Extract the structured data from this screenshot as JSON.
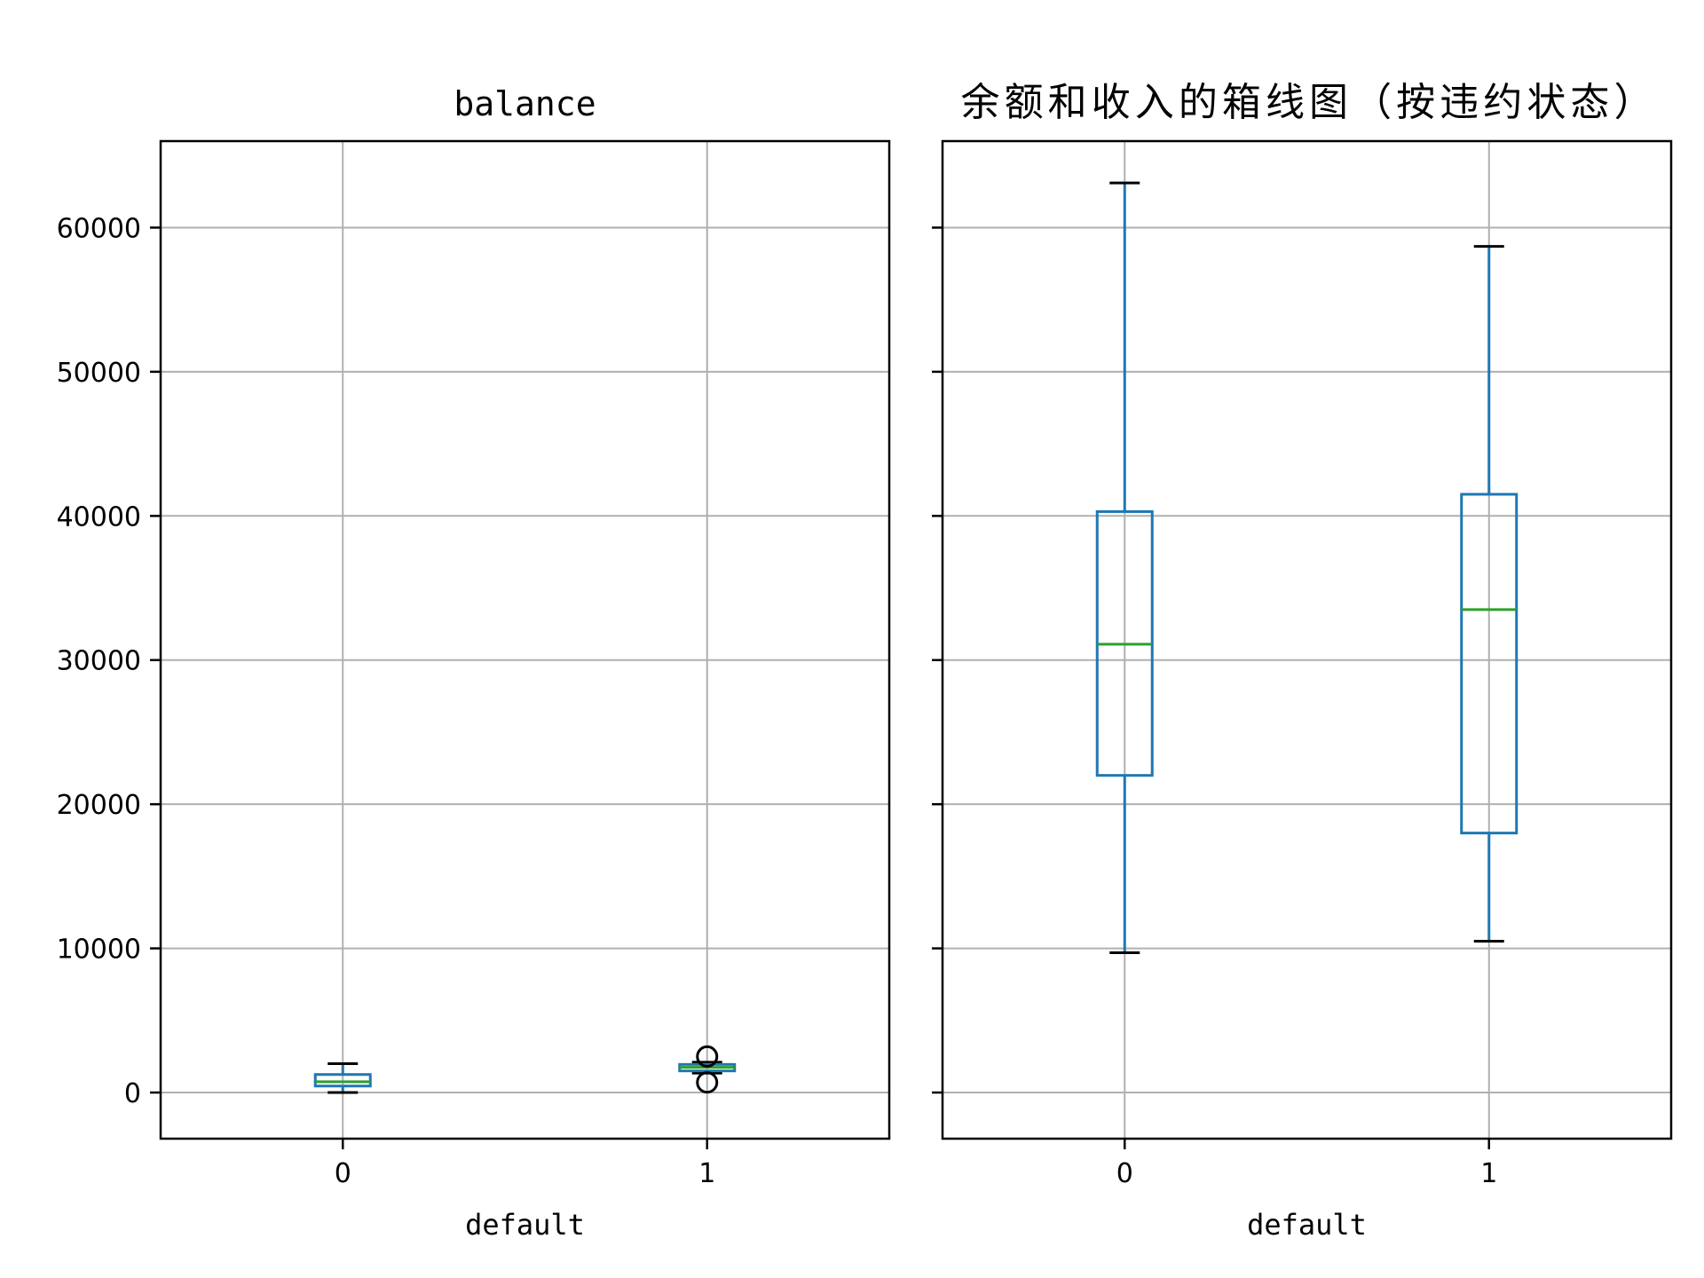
{
  "chart_data": [
    {
      "type": "box",
      "title": "balance",
      "xlabel": "default",
      "ylabel": "",
      "categories": [
        "0",
        "1"
      ],
      "ylim": [
        -3200,
        66000
      ],
      "yticks": [
        0,
        10000,
        20000,
        30000,
        40000,
        50000,
        60000
      ],
      "ytick_labels": [
        "0",
        "10000",
        "20000",
        "30000",
        "40000",
        "50000",
        "60000"
      ],
      "grid": true,
      "boxes": [
        {
          "category": "0",
          "whisker_low": 0,
          "q1": 450,
          "median": 750,
          "q3": 1250,
          "whisker_high": 2000,
          "outliers": []
        },
        {
          "category": "1",
          "whisker_low": 1350,
          "q1": 1500,
          "median": 1750,
          "q3": 1950,
          "whisker_high": 2100,
          "outliers": [
            2500,
            700
          ]
        }
      ]
    },
    {
      "type": "box",
      "title": "余额和收入的箱线图（按违约状态）",
      "xlabel": "default",
      "ylabel": "",
      "categories": [
        "0",
        "1"
      ],
      "ylim": [
        -3200,
        66000
      ],
      "yticks": [
        0,
        10000,
        20000,
        30000,
        40000,
        50000,
        60000
      ],
      "grid": true,
      "boxes": [
        {
          "category": "0",
          "whisker_low": 9700,
          "q1": 22000,
          "median": 31100,
          "q3": 40300,
          "whisker_high": 63100,
          "outliers": []
        },
        {
          "category": "1",
          "whisker_low": 10500,
          "q1": 18000,
          "median": 33500,
          "q3": 41500,
          "whisker_high": 58700,
          "outliers": []
        }
      ]
    }
  ],
  "colors": {
    "box": "#1f77b4",
    "median": "#2ca02c",
    "whisker_cap": "#000000",
    "grid": "#b0b0b0",
    "axes": "#000000"
  }
}
